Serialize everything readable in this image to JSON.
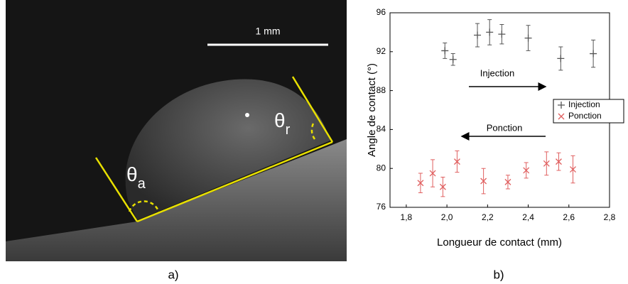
{
  "photo": {
    "scale_bar": "1 mm",
    "angle_advancing": {
      "symbol": "θ",
      "subscript": "a"
    },
    "angle_receding": {
      "symbol": "θ",
      "subscript": "r"
    }
  },
  "panel_labels": [
    "a)",
    "b)"
  ],
  "chart_data": {
    "type": "scatter",
    "x_label": "Longueur de contact (mm)",
    "y_label": "Angle de contact (°)",
    "xlim": [
      1.72,
      2.8
    ],
    "xticks": [
      {
        "value": 1.8,
        "label": "1,8"
      },
      {
        "value": 2.0,
        "label": "2,0"
      },
      {
        "value": 2.2,
        "label": "2,2"
      },
      {
        "value": 2.4,
        "label": "2,4"
      },
      {
        "value": 2.6,
        "label": "2,6"
      },
      {
        "value": 2.8,
        "label": "2,8"
      }
    ],
    "ylim": [
      76,
      96
    ],
    "yticks": [
      76,
      80,
      84,
      88,
      92,
      96
    ],
    "legend": "right",
    "annotations": [
      {
        "text": "Injection",
        "direction": "right"
      },
      {
        "text": "Ponction",
        "direction": "left"
      }
    ],
    "series": [
      {
        "name": "Injection",
        "color": "#555555",
        "marker": "plus",
        "x": [
          1.99,
          2.03,
          2.15,
          2.21,
          2.27,
          2.4,
          2.56,
          2.72
        ],
        "values": [
          92.1,
          91.2,
          93.7,
          94.0,
          93.8,
          93.4,
          91.3,
          91.8
        ],
        "errors": [
          0.8,
          0.6,
          1.2,
          1.3,
          1.0,
          1.3,
          1.2,
          1.4
        ]
      },
      {
        "name": "Ponction",
        "color": "#e06060",
        "marker": "cross",
        "x": [
          1.87,
          1.93,
          1.98,
          2.05,
          2.18,
          2.3,
          2.39,
          2.49,
          2.55,
          2.62
        ],
        "values": [
          78.5,
          79.5,
          78.1,
          80.7,
          78.7,
          78.6,
          79.8,
          80.5,
          80.7,
          79.9
        ],
        "errors": [
          1.0,
          1.4,
          1.0,
          1.1,
          1.3,
          0.7,
          0.8,
          1.2,
          0.9,
          1.4
        ]
      }
    ]
  }
}
